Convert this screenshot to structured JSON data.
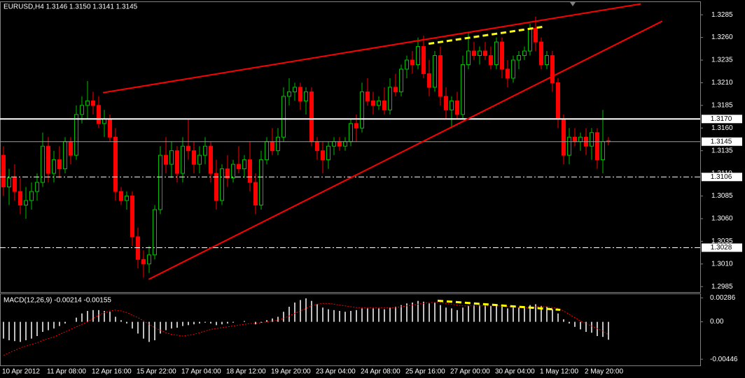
{
  "chart_data": {
    "type": "candlestick",
    "title": "EURUSD,H4  1.3146 1.3150 1.3141 1.3145",
    "up_color": "#00c000",
    "down_color": "#ff0000",
    "categories": [
      "10 Apr 2012",
      null,
      null,
      null,
      null,
      null,
      null,
      null,
      "11 Apr 08:00",
      null,
      null,
      null,
      null,
      null,
      null,
      null,
      "12 Apr 16:00",
      null,
      null,
      null,
      null,
      null,
      null,
      null,
      "15 Apr 22:00",
      null,
      null,
      null,
      null,
      null,
      null,
      null,
      "17 Apr 04:00",
      null,
      null,
      null,
      null,
      null,
      null,
      null,
      "18 Apr 12:00",
      null,
      null,
      null,
      null,
      null,
      null,
      null,
      "19 Apr 20:00",
      null,
      null,
      null,
      null,
      null,
      null,
      null,
      "23 Apr 04:00",
      null,
      null,
      null,
      null,
      null,
      null,
      null,
      "24 Apr 08:00",
      null,
      null,
      null,
      null,
      null,
      null,
      null,
      "25 Apr 16:00",
      null,
      null,
      null,
      null,
      null,
      null,
      null,
      "27 Apr 00:00",
      null,
      null,
      null,
      null,
      null,
      null,
      null,
      "30 Apr 04:00",
      null,
      null,
      null,
      null,
      null,
      null,
      null,
      "1 May 12:00",
      null,
      null,
      null,
      null,
      null,
      null,
      null,
      "2 May 20:00",
      null,
      null,
      null,
      null
    ],
    "ohlc": [
      [
        1.313,
        1.314,
        1.3085,
        1.3095
      ],
      [
        1.3095,
        1.3115,
        1.3075,
        1.3105
      ],
      [
        1.3105,
        1.312,
        1.308,
        1.309
      ],
      [
        1.309,
        1.3105,
        1.3065,
        1.3075
      ],
      [
        1.3075,
        1.3095,
        1.306,
        1.308
      ],
      [
        1.308,
        1.31,
        1.307,
        1.309
      ],
      [
        1.309,
        1.311,
        1.308,
        1.31
      ],
      [
        1.31,
        1.3155,
        1.3095,
        1.314
      ],
      [
        1.314,
        1.315,
        1.31,
        1.311
      ],
      [
        1.311,
        1.3135,
        1.31,
        1.3125
      ],
      [
        1.3125,
        1.314,
        1.3105,
        1.3115
      ],
      [
        1.3115,
        1.315,
        1.311,
        1.3145
      ],
      [
        1.3145,
        1.315,
        1.312,
        1.313
      ],
      [
        1.313,
        1.3185,
        1.3125,
        1.3175
      ],
      [
        1.3175,
        1.3195,
        1.3165,
        1.3185
      ],
      [
        1.3185,
        1.3212,
        1.317,
        1.319
      ],
      [
        1.319,
        1.32,
        1.3175,
        1.3185
      ],
      [
        1.3185,
        1.3195,
        1.316,
        1.3165
      ],
      [
        1.3165,
        1.318,
        1.315,
        1.317
      ],
      [
        1.317,
        1.3175,
        1.3145,
        1.315
      ],
      [
        1.315,
        1.316,
        1.308,
        1.309
      ],
      [
        1.309,
        1.3095,
        1.3075,
        1.308
      ],
      [
        1.308,
        1.309,
        1.307,
        1.3085
      ],
      [
        1.3085,
        1.309,
        1.303,
        1.304
      ],
      [
        1.304,
        1.305,
        1.3005,
        1.3015
      ],
      [
        1.3015,
        1.3025,
        1.2995,
        1.301
      ],
      [
        1.301,
        1.303,
        1.3,
        1.302
      ],
      [
        1.302,
        1.3075,
        1.3015,
        1.307
      ],
      [
        1.307,
        1.314,
        1.3065,
        1.313
      ],
      [
        1.313,
        1.315,
        1.311,
        1.312
      ],
      [
        1.312,
        1.3145,
        1.3105,
        1.3135
      ],
      [
        1.3135,
        1.314,
        1.31,
        1.311
      ],
      [
        1.311,
        1.315,
        1.31,
        1.314
      ],
      [
        1.314,
        1.317,
        1.3125,
        1.3135
      ],
      [
        1.3135,
        1.3145,
        1.311,
        1.312
      ],
      [
        1.312,
        1.314,
        1.311,
        1.313
      ],
      [
        1.313,
        1.315,
        1.312,
        1.314
      ],
      [
        1.314,
        1.3145,
        1.31,
        1.311
      ],
      [
        1.311,
        1.3125,
        1.307,
        1.308
      ],
      [
        1.308,
        1.312,
        1.3075,
        1.3115
      ],
      [
        1.3115,
        1.313,
        1.3095,
        1.3105
      ],
      [
        1.3105,
        1.3125,
        1.31,
        1.312
      ],
      [
        1.312,
        1.314,
        1.311,
        1.3115
      ],
      [
        1.3115,
        1.313,
        1.3105,
        1.3125
      ],
      [
        1.3125,
        1.3145,
        1.309,
        1.31
      ],
      [
        1.31,
        1.311,
        1.3065,
        1.3075
      ],
      [
        1.3075,
        1.3135,
        1.307,
        1.3125
      ],
      [
        1.3125,
        1.315,
        1.312,
        1.3145
      ],
      [
        1.3145,
        1.316,
        1.313,
        1.3135
      ],
      [
        1.3135,
        1.316,
        1.313,
        1.315
      ],
      [
        1.315,
        1.3205,
        1.3145,
        1.3195
      ],
      [
        1.3195,
        1.3215,
        1.3185,
        1.32
      ],
      [
        1.32,
        1.321,
        1.319,
        1.3205
      ],
      [
        1.3205,
        1.321,
        1.318,
        1.319
      ],
      [
        1.319,
        1.3205,
        1.3175,
        1.32
      ],
      [
        1.32,
        1.3205,
        1.314,
        1.3145
      ],
      [
        1.3145,
        1.315,
        1.3125,
        1.3135
      ],
      [
        1.3135,
        1.3145,
        1.311,
        1.3125
      ],
      [
        1.3125,
        1.3145,
        1.3115,
        1.314
      ],
      [
        1.314,
        1.315,
        1.313,
        1.3145
      ],
      [
        1.3145,
        1.315,
        1.3135,
        1.314
      ],
      [
        1.314,
        1.315,
        1.3135,
        1.3145
      ],
      [
        1.3145,
        1.317,
        1.314,
        1.3165
      ],
      [
        1.3165,
        1.3175,
        1.3145,
        1.316
      ],
      [
        1.316,
        1.321,
        1.3155,
        1.32
      ],
      [
        1.32,
        1.3215,
        1.3185,
        1.319
      ],
      [
        1.319,
        1.32,
        1.3175,
        1.3185
      ],
      [
        1.3185,
        1.3195,
        1.318,
        1.319
      ],
      [
        1.319,
        1.3205,
        1.3175,
        1.318
      ],
      [
        1.318,
        1.3215,
        1.3175,
        1.3205
      ],
      [
        1.3205,
        1.322,
        1.3195,
        1.32
      ],
      [
        1.32,
        1.323,
        1.3195,
        1.3225
      ],
      [
        1.3225,
        1.324,
        1.3215,
        1.3235
      ],
      [
        1.3235,
        1.3245,
        1.322,
        1.323
      ],
      [
        1.323,
        1.326,
        1.3225,
        1.325
      ],
      [
        1.325,
        1.3262,
        1.3215,
        1.322
      ],
      [
        1.322,
        1.3235,
        1.3195,
        1.3205
      ],
      [
        1.3205,
        1.3245,
        1.32,
        1.324
      ],
      [
        1.324,
        1.325,
        1.3185,
        1.3195
      ],
      [
        1.3195,
        1.3205,
        1.317,
        1.318
      ],
      [
        1.318,
        1.3195,
        1.316,
        1.319
      ],
      [
        1.319,
        1.32,
        1.317,
        1.3175
      ],
      [
        1.3175,
        1.324,
        1.317,
        1.323
      ],
      [
        1.323,
        1.3265,
        1.3225,
        1.3245
      ],
      [
        1.3245,
        1.3255,
        1.3235,
        1.324
      ],
      [
        1.324,
        1.325,
        1.323,
        1.3245
      ],
      [
        1.3245,
        1.3255,
        1.3235,
        1.324
      ],
      [
        1.324,
        1.325,
        1.3225,
        1.323
      ],
      [
        1.323,
        1.326,
        1.3225,
        1.3255
      ],
      [
        1.3255,
        1.326,
        1.3215,
        1.3225
      ],
      [
        1.3225,
        1.3235,
        1.3205,
        1.3215
      ],
      [
        1.3215,
        1.324,
        1.321,
        1.3235
      ],
      [
        1.3235,
        1.3245,
        1.3225,
        1.324
      ],
      [
        1.324,
        1.325,
        1.3235,
        1.3245
      ],
      [
        1.3245,
        1.3275,
        1.324,
        1.327
      ],
      [
        1.327,
        1.3283,
        1.3245,
        1.3255
      ],
      [
        1.3255,
        1.326,
        1.3225,
        1.323
      ],
      [
        1.323,
        1.3245,
        1.3225,
        1.324
      ],
      [
        1.324,
        1.3245,
        1.32,
        1.321
      ],
      [
        1.321,
        1.3215,
        1.316,
        1.317
      ],
      [
        1.317,
        1.3175,
        1.312,
        1.313
      ],
      [
        1.313,
        1.316,
        1.312,
        1.315
      ],
      [
        1.315,
        1.316,
        1.314,
        1.3145
      ],
      [
        1.3145,
        1.3155,
        1.3135,
        1.315
      ],
      [
        1.315,
        1.316,
        1.313,
        1.314
      ],
      [
        1.314,
        1.316,
        1.3125,
        1.3155
      ],
      [
        1.3155,
        1.316,
        1.3115,
        1.3125
      ],
      [
        1.3125,
        1.318,
        1.311,
        1.3145
      ],
      [
        1.3146,
        1.315,
        1.3141,
        1.3145
      ]
    ],
    "ylim": [
      1.2979,
      1.3299
    ],
    "yticks": [
      1.2985,
      {
        "value": 1.301,
        "label": "1.3010"
      },
      1.3035,
      {
        "value": 1.306,
        "label": "1.3060"
      },
      1.3085,
      {
        "value": 1.311,
        "label": "1.3110"
      },
      1.3135,
      {
        "value": 1.316,
        "label": "1.3160"
      },
      1.3185,
      {
        "value": 1.321,
        "label": "1.3210"
      },
      1.3235,
      {
        "value": 1.326,
        "label": "1.3260"
      },
      1.3285
    ],
    "levels": [
      {
        "value": 1.317,
        "label": "1.3170",
        "style": "solid",
        "color": "#ffffff"
      },
      {
        "value": 1.3145,
        "label": "1.3145",
        "style": "thin",
        "color": "#a0a0a0"
      },
      {
        "value": 1.3106,
        "label": "1.3106",
        "style": "dashdot",
        "color": "#ffffff"
      },
      {
        "value": 1.3028,
        "label": "1.3028",
        "style": "dashdot",
        "color": "#ffffff"
      }
    ],
    "trendlines": [
      {
        "x": [
          17.75,
          113.75
        ],
        "y": [
          1.3199,
          1.3297
        ],
        "color": "#ff0000",
        "style": "solid"
      },
      {
        "x": [
          25.9,
          117.6
        ],
        "y": [
          1.2993,
          1.3278
        ],
        "color": "#ff0000",
        "style": "solid"
      },
      {
        "x": [
          75.9,
          96.6
        ],
        "y": [
          1.3253,
          1.3272
        ],
        "color": "#ffff00",
        "style": "dashed"
      }
    ],
    "indicator": {
      "type": "macd",
      "title": "MACD(12,26,9) -0.00214 -0.00155",
      "hist_color": "#ffffff",
      "signal_color": "#ff0000",
      "ylim": [
        -0.0052,
        0.0033
      ],
      "yticks": [
        0.00286,
        {
          "value": 0,
          "label": "0.00"
        },
        -0.00446
      ],
      "histogram": [
        -0.002,
        -0.0022,
        -0.0023,
        -0.0024,
        -0.0022,
        -0.002,
        -0.0017,
        -0.0012,
        -0.001,
        -0.0008,
        -0.0005,
        -0.0002,
        0,
        0.0005,
        0.001,
        0.0013,
        0.0014,
        0.0014,
        0.0013,
        0.0012,
        0.0006,
        0.0002,
        -0.0002,
        -0.0008,
        -0.0014,
        -0.002,
        -0.0024,
        -0.0022,
        -0.0014,
        -0.001,
        -0.0008,
        -0.0007,
        -0.0005,
        -0.0004,
        -0.0003,
        -0.0002,
        -0.0001,
        -0.0002,
        -0.0004,
        -0.0003,
        -0.0002,
        -0.0001,
        0,
        0.0001,
        0,
        -0.0003,
        -0.0001,
        0.0002,
        0.0004,
        0.0006,
        0.0012,
        0.0018,
        0.0023,
        0.0026,
        0.0028,
        0.0025,
        0.0021,
        0.0017,
        0.0015,
        0.0014,
        0.0013,
        0.0012,
        0.0013,
        0.0014,
        0.0016,
        0.0016,
        0.0016,
        0.0016,
        0.0015,
        0.0017,
        0.0018,
        0.002,
        0.0022,
        0.0023,
        0.0025,
        0.0024,
        0.0022,
        0.0023,
        0.002,
        0.0017,
        0.0016,
        0.0014,
        0.0017,
        0.0019,
        0.002,
        0.002,
        0.002,
        0.0019,
        0.002,
        0.0018,
        0.0016,
        0.0017,
        0.0017,
        0.0018,
        0.002,
        0.0021,
        0.0019,
        0.0018,
        0.0015,
        0.001,
        0.0003,
        -0.0002,
        -0.0006,
        -0.0009,
        -0.0012,
        -0.0013,
        -0.0017,
        -0.0018,
        -0.00214
      ],
      "signal": [
        -0.004,
        -0.0037,
        -0.0034,
        -0.0031,
        -0.0029,
        -0.0027,
        -0.0025,
        -0.0022,
        -0.002,
        -0.0018,
        -0.0015,
        -0.0012,
        -0.0009,
        -0.0006,
        -0.0003,
        0,
        0.0004,
        0.0008,
        0.0011,
        0.0013,
        0.0014,
        0.0013,
        0.0011,
        0.0008,
        0.0005,
        0.0001,
        -0.0003,
        -0.0007,
        -0.001,
        -0.0013,
        -0.0015,
        -0.0016,
        -0.0017,
        -0.0016,
        -0.0015,
        -0.0013,
        -0.0011,
        -0.0009,
        -0.0008,
        -0.0007,
        -0.0006,
        -0.0005,
        -0.0004,
        -0.0003,
        -0.0002,
        -0.0002,
        -0.0001,
        0,
        0.0001,
        0.0002,
        0.0004,
        0.0007,
        0.001,
        0.0013,
        0.0016,
        0.0019,
        0.0021,
        0.0022,
        0.0022,
        0.0021,
        0.002,
        0.0019,
        0.0018,
        0.0017,
        0.0017,
        0.0017,
        0.0017,
        0.0017,
        0.0017,
        0.0017,
        0.0017,
        0.0018,
        0.0019,
        0.002,
        0.0021,
        0.0022,
        0.0023,
        0.0023,
        0.0023,
        0.0022,
        0.0021,
        0.002,
        0.0019,
        0.0019,
        0.0019,
        0.0019,
        0.0019,
        0.0019,
        0.0019,
        0.0019,
        0.0018,
        0.0018,
        0.0017,
        0.0017,
        0.0017,
        0.0018,
        0.0018,
        0.0018,
        0.0017,
        0.0016,
        0.0013,
        0.0009,
        0.0005,
        0.0001,
        -0.0002,
        -0.0005,
        -0.0008,
        -0.0011,
        -0.00155
      ],
      "trendlines": [
        {
          "x": [
            77.5,
            99.4
          ],
          "y": [
            0.00252,
            0.00143
          ],
          "color": "#ffff00",
          "style": "dashed"
        }
      ]
    }
  }
}
